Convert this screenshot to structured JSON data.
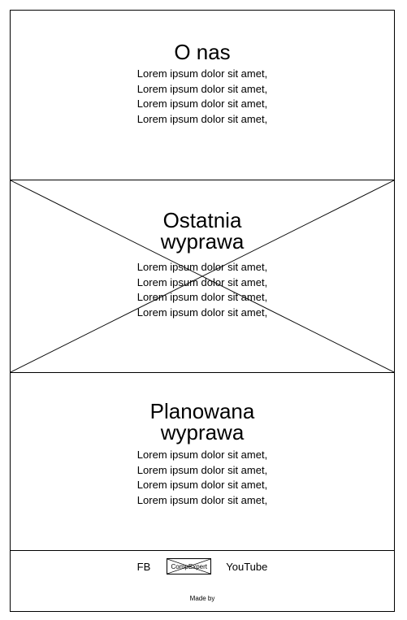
{
  "about": {
    "title": "O nas",
    "lines": [
      "Lorem ipsum dolor sit amet,",
      "Lorem ipsum dolor sit amet,",
      "Lorem ipsum dolor sit amet,",
      "Lorem ipsum dolor sit amet,"
    ]
  },
  "last_trip": {
    "title_line1": "Ostatnia",
    "title_line2": "wyprawa",
    "lines": [
      "Lorem ipsum dolor sit amet,",
      "Lorem ipsum dolor sit amet,",
      "Lorem ipsum dolor sit amet,",
      "Lorem ipsum dolor sit amet,"
    ]
  },
  "planned_trip": {
    "title_line1": "Planowana",
    "title_line2": "wyprawa",
    "lines": [
      "Lorem ipsum dolor sit amet,",
      "Lorem ipsum dolor sit amet,",
      "Lorem ipsum dolor sit amet,",
      "Lorem ipsum dolor sit amet,"
    ]
  },
  "footer": {
    "fb_label": "FB",
    "logo_label": "CompExpert",
    "youtube_label": "YouTube",
    "made_by": "Made by"
  }
}
